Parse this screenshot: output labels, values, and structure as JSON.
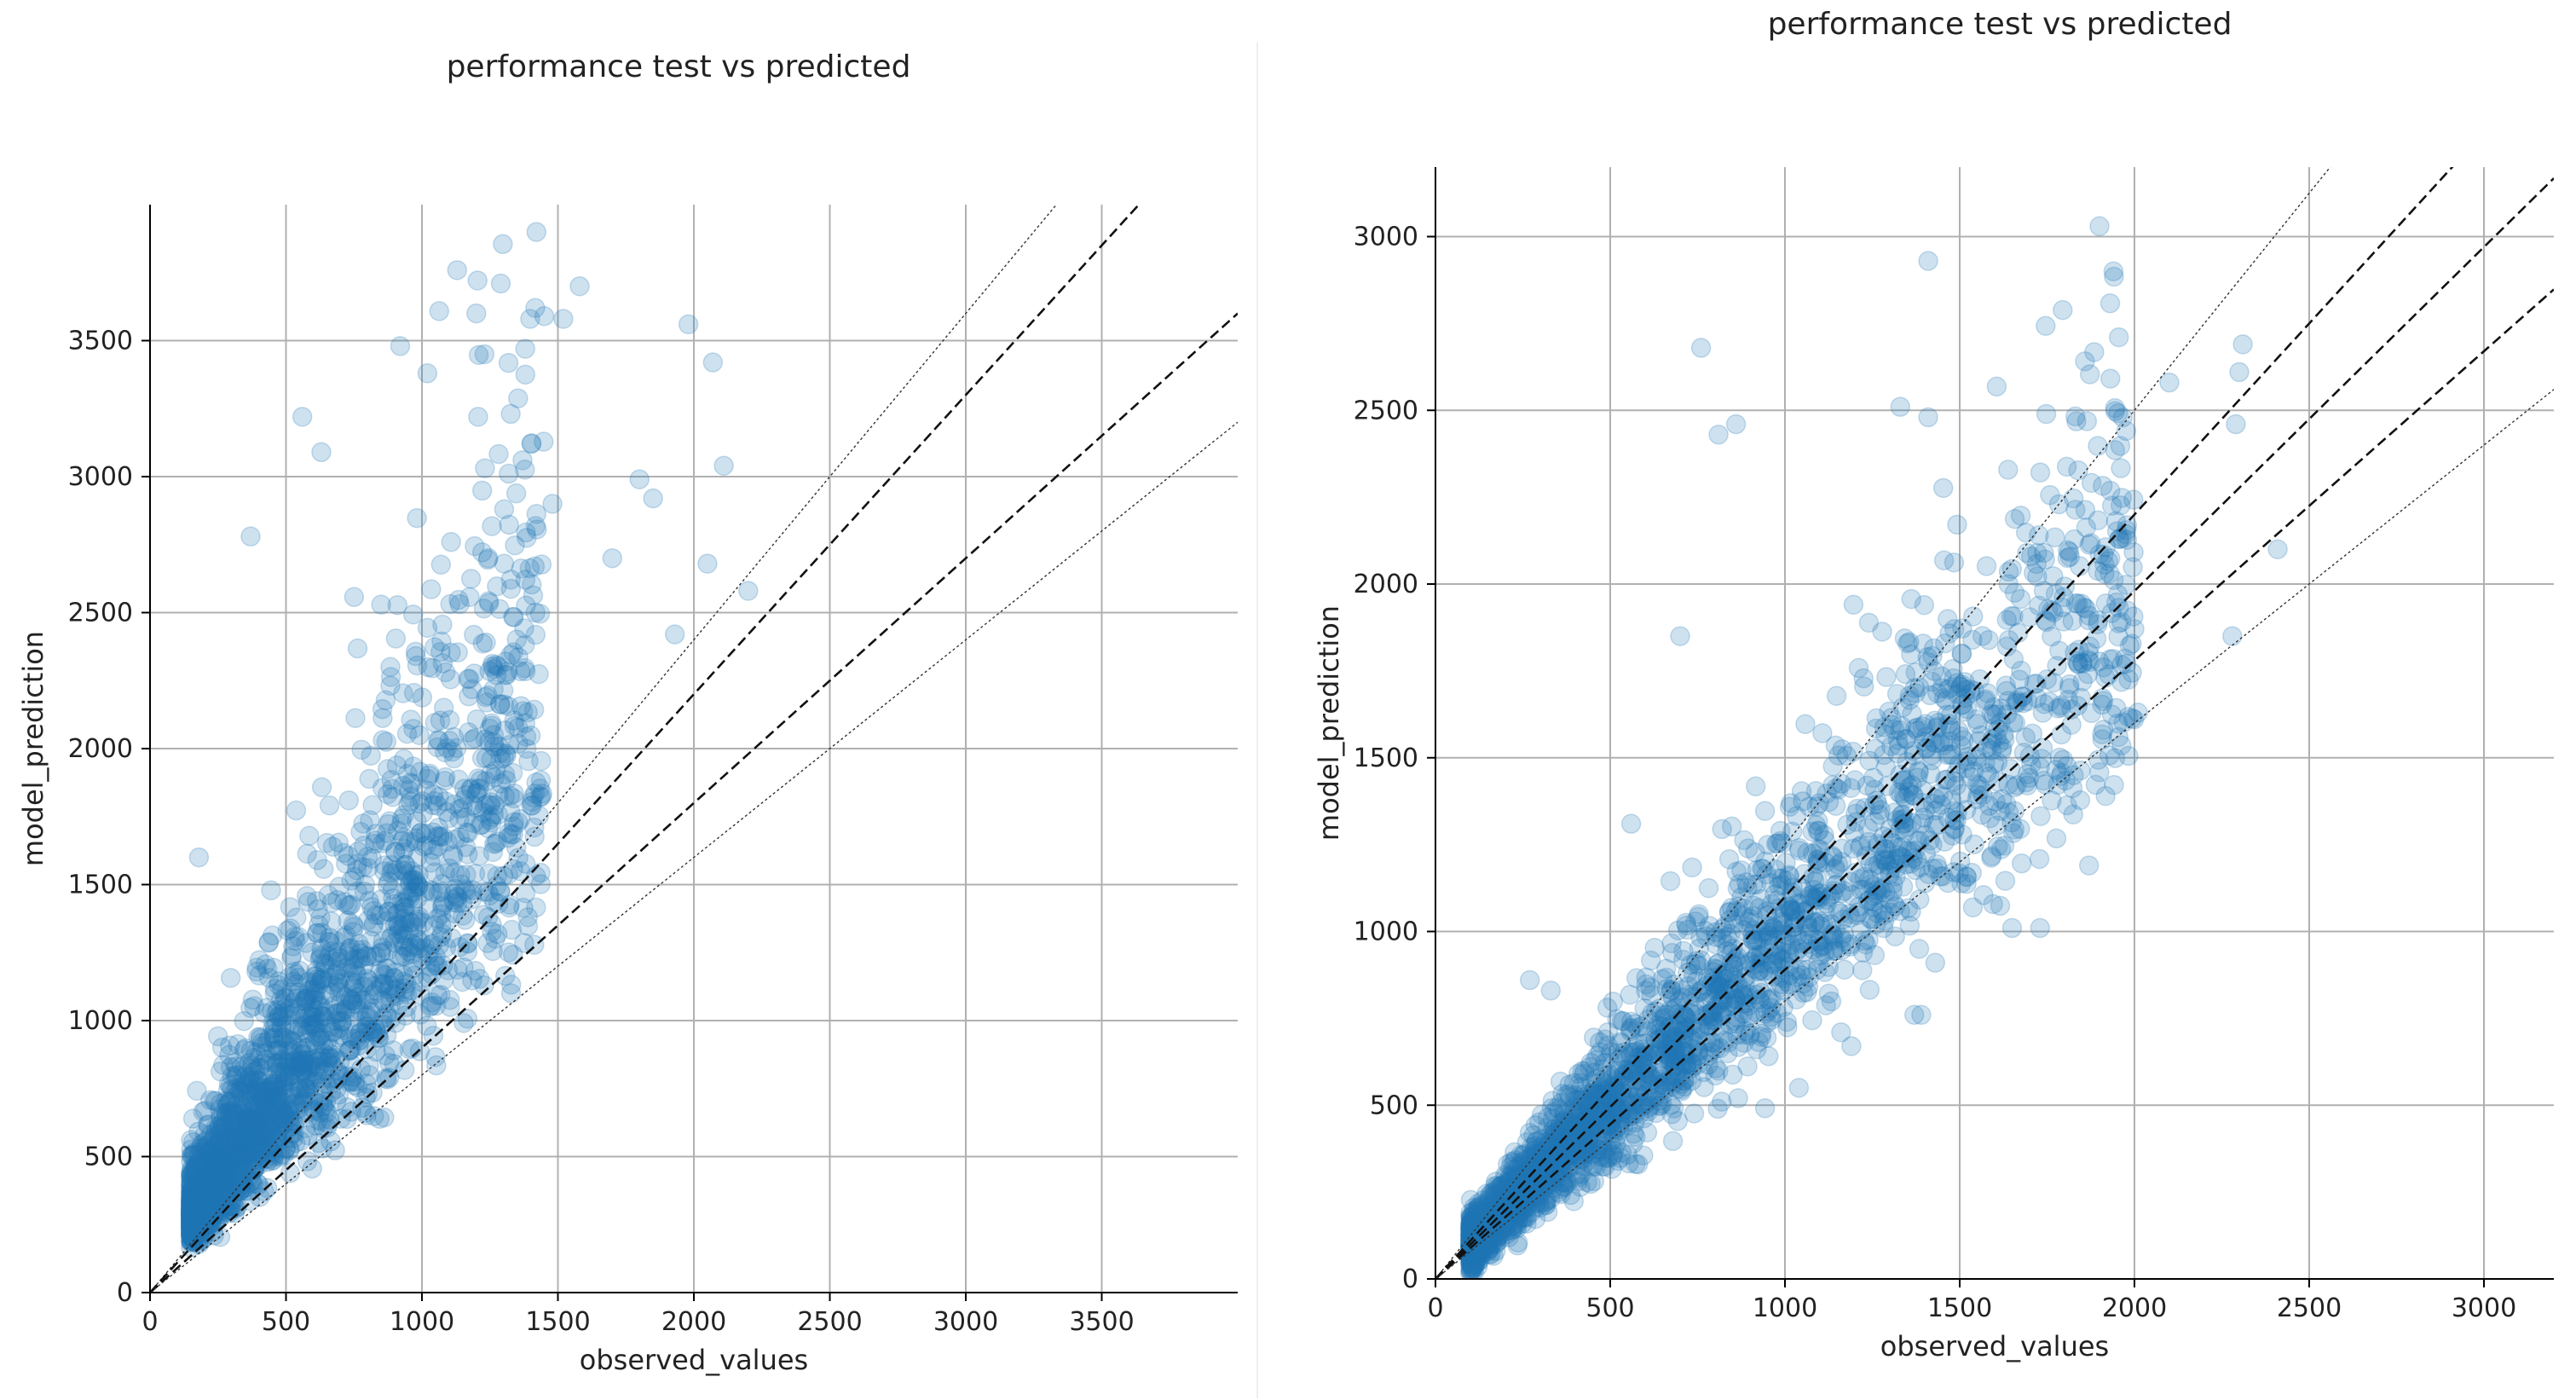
{
  "chart_data": [
    {
      "type": "scatter",
      "title": "performance test vs predicted",
      "xlabel": "observed_values",
      "ylabel": "model_prediction",
      "xlim": [
        0,
        4000
      ],
      "ylim": [
        0,
        4000
      ],
      "xticks": [
        0,
        500,
        1000,
        1500,
        2000,
        2500,
        3000,
        3500
      ],
      "yticks": [
        0,
        500,
        1000,
        1500,
        2000,
        2500,
        3000,
        3500
      ],
      "grid": true,
      "point_color": "#1f77b4",
      "point_alpha": 0.22,
      "reference_lines": [
        {
          "slope": 1.2,
          "style": "dotted"
        },
        {
          "slope": 1.1,
          "style": "dashed"
        },
        {
          "slope": 0.9,
          "style": "dashed"
        },
        {
          "slope": 0.8,
          "style": "dotted"
        }
      ],
      "notable_points": [
        {
          "x": 180,
          "y": 1600
        },
        {
          "x": 370,
          "y": 2780
        },
        {
          "x": 560,
          "y": 3220
        },
        {
          "x": 630,
          "y": 3090
        },
        {
          "x": 920,
          "y": 3480
        },
        {
          "x": 1020,
          "y": 3380
        },
        {
          "x": 1200,
          "y": 3600
        },
        {
          "x": 1290,
          "y": 3710
        },
        {
          "x": 1380,
          "y": 3470
        },
        {
          "x": 1450,
          "y": 3590
        },
        {
          "x": 1580,
          "y": 3700
        },
        {
          "x": 1520,
          "y": 3580
        },
        {
          "x": 1980,
          "y": 3560
        },
        {
          "x": 2070,
          "y": 3420
        },
        {
          "x": 2110,
          "y": 3040
        },
        {
          "x": 1800,
          "y": 2990
        },
        {
          "x": 1850,
          "y": 2920
        },
        {
          "x": 2050,
          "y": 2680
        },
        {
          "x": 2200,
          "y": 2580
        },
        {
          "x": 1930,
          "y": 2420
        },
        {
          "x": 1700,
          "y": 2700
        },
        {
          "x": 1230,
          "y": 3450
        },
        {
          "x": 1370,
          "y": 3060
        },
        {
          "x": 1480,
          "y": 2900
        }
      ]
    },
    {
      "type": "scatter",
      "title": "performance test vs predicted",
      "xlabel": "observed_values",
      "ylabel": "model_prediction",
      "xlim": [
        0,
        3200
      ],
      "ylim": [
        0,
        3200
      ],
      "xticks": [
        0,
        500,
        1000,
        1500,
        2000,
        2500,
        3000
      ],
      "yticks": [
        0,
        500,
        1000,
        1500,
        2000,
        2500,
        3000
      ],
      "grid": true,
      "point_color": "#1f77b4",
      "point_alpha": 0.22,
      "reference_lines": [
        {
          "slope": 1.25,
          "style": "dotted"
        },
        {
          "slope": 1.1,
          "style": "dashed"
        },
        {
          "slope": 0.99,
          "style": "dashed"
        },
        {
          "slope": 0.89,
          "style": "dashed"
        },
        {
          "slope": 0.8,
          "style": "dotted"
        }
      ],
      "notable_points": [
        {
          "x": 1900,
          "y": 3030
        },
        {
          "x": 1940,
          "y": 2900
        },
        {
          "x": 1410,
          "y": 2930
        },
        {
          "x": 760,
          "y": 2680
        },
        {
          "x": 810,
          "y": 2430
        },
        {
          "x": 860,
          "y": 2460
        },
        {
          "x": 1330,
          "y": 2510
        },
        {
          "x": 1410,
          "y": 2480
        },
        {
          "x": 2310,
          "y": 2690
        },
        {
          "x": 2300,
          "y": 2610
        },
        {
          "x": 2100,
          "y": 2580
        },
        {
          "x": 2290,
          "y": 2460
        },
        {
          "x": 2410,
          "y": 2100
        },
        {
          "x": 2280,
          "y": 1850
        },
        {
          "x": 2010,
          "y": 1630
        },
        {
          "x": 1870,
          "y": 1190
        },
        {
          "x": 1730,
          "y": 1010
        },
        {
          "x": 1650,
          "y": 1010
        },
        {
          "x": 1430,
          "y": 910
        },
        {
          "x": 1390,
          "y": 760
        },
        {
          "x": 1370,
          "y": 760
        },
        {
          "x": 1040,
          "y": 550
        },
        {
          "x": 580,
          "y": 330
        },
        {
          "x": 1190,
          "y": 670
        },
        {
          "x": 560,
          "y": 1310
        },
        {
          "x": 270,
          "y": 860
        },
        {
          "x": 330,
          "y": 830
        },
        {
          "x": 700,
          "y": 1850
        }
      ]
    }
  ]
}
